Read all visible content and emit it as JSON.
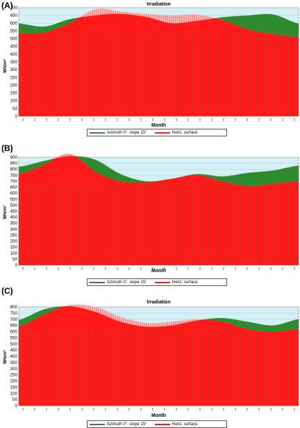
{
  "panels": [
    {
      "letter": "(A)",
      "legend": [
        "Azimuth 0°, slope 15°",
        "Horiz. surface"
      ]
    },
    {
      "letter": "(B)",
      "legend": [
        "Azimuth 0°, slope 15°",
        "Horiz. surface"
      ]
    },
    {
      "letter": "(C)",
      "legend": [
        "Azimuth 0°, slope 15°",
        "Horiz. surface"
      ]
    }
  ],
  "colors": {
    "sloped": "#2e8b2e",
    "horizontal": "#ff1a1a",
    "horizontal_stripe": "#fbd6d6",
    "plot_bg": "#d4f0f4",
    "grid": "#a9d3da"
  },
  "chart_data": [
    {
      "type": "area",
      "title": "Irradiation",
      "xlabel": "Month",
      "ylabel": "Wh/m²",
      "ylim": [
        0,
        700
      ],
      "yticks": [
        0,
        50,
        100,
        150,
        200,
        250,
        300,
        350,
        400,
        450,
        500,
        550,
        600,
        650,
        700
      ],
      "x": [
        0,
        1,
        2,
        3,
        4,
        5,
        6,
        7,
        8,
        9,
        10,
        11
      ],
      "series": [
        {
          "name": "Azimuth 0°, slope 15°",
          "values": [
            598,
            578,
            625,
            650,
            660,
            640,
            600,
            615,
            638,
            650,
            656,
            598
          ]
        },
        {
          "name": "Horiz. surface",
          "values": [
            535,
            540,
            600,
            690,
            675,
            660,
            650,
            655,
            620,
            560,
            530,
            510
          ]
        }
      ]
    },
    {
      "type": "area",
      "title": "",
      "xlabel": "Month",
      "ylabel": "Wh/m²",
      "ylim": [
        0,
        900
      ],
      "yticks": [
        0,
        50,
        100,
        150,
        200,
        250,
        300,
        350,
        400,
        450,
        500,
        550,
        600,
        650,
        700,
        750,
        800,
        850,
        900
      ],
      "x": [
        0,
        1,
        2,
        3,
        4,
        5,
        6,
        7,
        8,
        9,
        10,
        11
      ],
      "series": [
        {
          "name": "Azimuth 0°, slope 15°",
          "values": [
            820,
            870,
            910,
            880,
            760,
            700,
            720,
            760,
            740,
            770,
            790,
            830
          ]
        },
        {
          "name": "Horiz. surface",
          "values": [
            760,
            840,
            930,
            780,
            700,
            690,
            720,
            750,
            700,
            660,
            680,
            700
          ]
        }
      ]
    },
    {
      "type": "area",
      "title": "Irradiation",
      "xlabel": "Month",
      "ylabel": "Wh/m²",
      "ylim": [
        0,
        800
      ],
      "yticks": [
        0,
        50,
        100,
        150,
        200,
        250,
        300,
        350,
        400,
        450,
        500,
        550,
        600,
        650,
        700,
        750,
        800
      ],
      "x": [
        0,
        1,
        2,
        3,
        4,
        5,
        6,
        7,
        8,
        9,
        10,
        11
      ],
      "series": [
        {
          "name": "Azimuth 0°, slope 15°",
          "values": [
            695,
            780,
            805,
            760,
            680,
            640,
            650,
            690,
            710,
            680,
            650,
            700
          ]
        },
        {
          "name": "Horiz. surface",
          "values": [
            640,
            740,
            815,
            800,
            720,
            670,
            680,
            700,
            680,
            620,
            600,
            620
          ]
        }
      ]
    }
  ]
}
